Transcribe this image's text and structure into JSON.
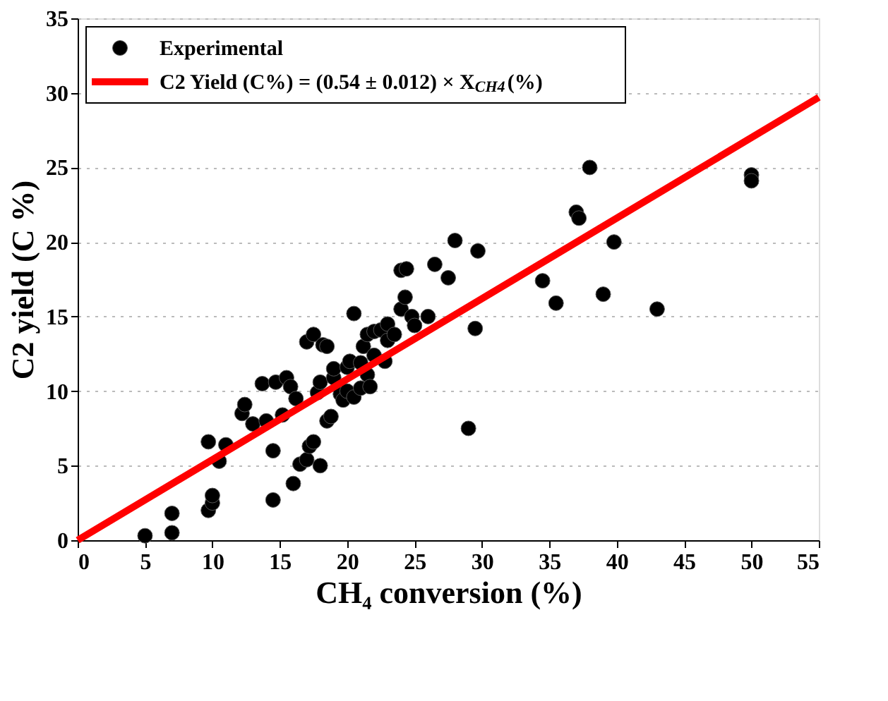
{
  "chart_data": {
    "type": "scatter",
    "xlabel": "CH₄ conversion (%)",
    "ylabel": "C2 yield (C %)",
    "xlim": [
      0,
      55
    ],
    "xticks": [
      0,
      5,
      10,
      15,
      20,
      25,
      30,
      35,
      40,
      45,
      50,
      55
    ],
    "ylim": [
      0,
      35
    ],
    "yticks": [
      0,
      5,
      10,
      15,
      20,
      25,
      30,
      35
    ],
    "grid": "y",
    "legend": "top left",
    "marker": "circle",
    "series": [
      {
        "name": "Experimental",
        "type": "scatter",
        "color": "#000000",
        "x": [
          5,
          7,
          7,
          9.7,
          10,
          10,
          9.7,
          10.5,
          11,
          12.2,
          12.4,
          13,
          13.7,
          14,
          14.5,
          14.5,
          14.7,
          15.2,
          15.5,
          15.8,
          16,
          16.2,
          16.5,
          17,
          17,
          17.2,
          17.5,
          17.5,
          17.8,
          18,
          18,
          18.2,
          18.5,
          18.5,
          18.8,
          19,
          19,
          19.5,
          19.7,
          20,
          20,
          20.2,
          20.5,
          20.5,
          21,
          21,
          21.2,
          21.5,
          21.5,
          21.7,
          22,
          22,
          22.5,
          22.8,
          23,
          23,
          23.5,
          24,
          24,
          24.3,
          24.4,
          24.8,
          25,
          26,
          26.5,
          27.5,
          28,
          29,
          29.5,
          29.7,
          34.5,
          35.5,
          37,
          37.2,
          38,
          39,
          39.8,
          43,
          50,
          50
        ],
        "values": [
          0.3,
          0.5,
          1.8,
          2,
          2.5,
          3,
          6.6,
          5.3,
          6.4,
          8.5,
          9.1,
          7.8,
          10.5,
          8,
          2.7,
          6,
          10.6,
          8.4,
          10.9,
          10.3,
          3.8,
          9.5,
          5.1,
          5.4,
          13.3,
          6.3,
          6.6,
          13.8,
          9.9,
          5,
          10.6,
          13.1,
          13,
          8,
          8.3,
          10.9,
          11.5,
          9.8,
          9.4,
          10,
          11.6,
          12,
          15.2,
          9.6,
          10.2,
          11.9,
          13,
          13.8,
          11.1,
          10.3,
          12.4,
          14,
          14.1,
          12,
          14.5,
          13.4,
          13.8,
          15.5,
          18.1,
          16.3,
          18.2,
          15,
          14.4,
          15,
          18.5,
          17.6,
          20.1,
          7.5,
          14.2,
          19.4,
          17.4,
          15.9,
          22,
          21.6,
          25,
          16.5,
          20,
          15.5,
          24.5,
          24.1
        ]
      },
      {
        "name": "C2 Yield (C%) = (0.54 ± 0.012) × X$_{CH4}$(%)",
        "type": "line",
        "color": "#ff0000",
        "line_style": "solid",
        "marker": "none",
        "x": [
          0,
          55
        ],
        "values": [
          0,
          29.7
        ]
      }
    ]
  }
}
